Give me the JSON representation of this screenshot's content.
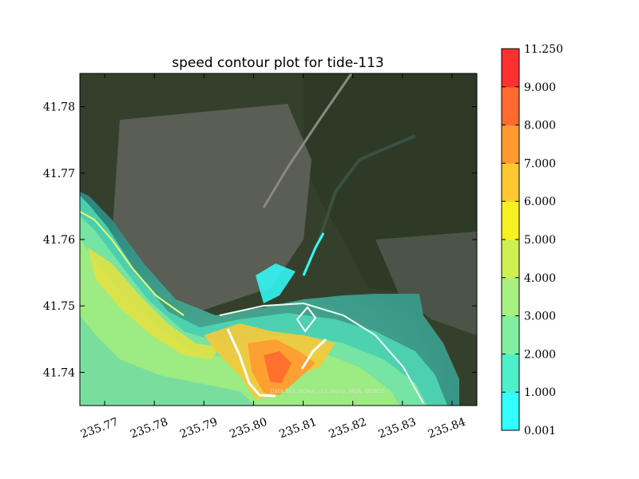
{
  "chart_data": {
    "type": "heatmap",
    "title": "speed contour plot for tide-113",
    "xlabel": "",
    "ylabel": "",
    "xlim": [
      235.765,
      235.845
    ],
    "ylim": [
      41.735,
      41.785
    ],
    "x_ticks": [
      "235.77",
      "235.78",
      "235.79",
      "235.80",
      "235.81",
      "235.82",
      "235.83",
      "235.84"
    ],
    "x_tick_values": [
      235.77,
      235.78,
      235.79,
      235.8,
      235.81,
      235.82,
      235.83,
      235.84
    ],
    "y_ticks": [
      "41.74",
      "41.75",
      "41.76",
      "41.77",
      "41.78"
    ],
    "y_tick_values": [
      41.74,
      41.75,
      41.76,
      41.77,
      41.78
    ],
    "background": "satellite imagery",
    "attribution": "Data SIO, NOAA, U.S. Navy, NGA, GEBCO",
    "colorbar": {
      "levels": [
        0.001,
        1.0,
        2.0,
        3.0,
        4.0,
        5.0,
        6.0,
        7.0,
        8.0,
        9.0,
        11.25
      ],
      "labels": [
        "0.001",
        "1.000",
        "2.000",
        "3.000",
        "4.000",
        "5.000",
        "6.000",
        "7.000",
        "8.000",
        "9.000",
        "11.250"
      ],
      "colors": [
        "#33ffff",
        "#4df0c8",
        "#80f0a0",
        "#a8f080",
        "#d0f050",
        "#f8f020",
        "#ffc830",
        "#ff9a30",
        "#ff6a30",
        "#ff3030"
      ]
    }
  }
}
